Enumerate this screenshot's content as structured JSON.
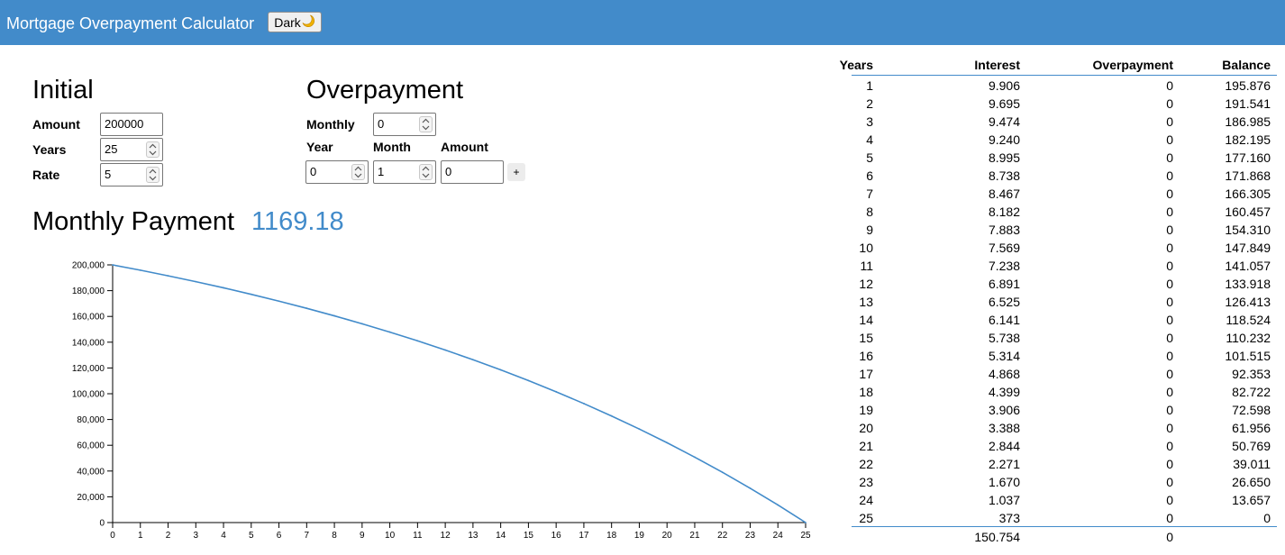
{
  "header": {
    "title": "Mortgage Overpayment Calculator",
    "dark_button_label": "Dark",
    "dark_button_icon": "moon-icon"
  },
  "initial": {
    "heading": "Initial",
    "amount_label": "Amount",
    "amount_value": "200000",
    "years_label": "Years",
    "years_value": "25",
    "rate_label": "Rate",
    "rate_value": "5"
  },
  "overpayment": {
    "heading": "Overpayment",
    "monthly_label": "Monthly",
    "monthly_value": "0",
    "year_label": "Year",
    "month_label": "Month",
    "amount_label": "Amount",
    "year_value": "0",
    "month_value": "1",
    "amount_value": "0",
    "add_button_label": "+"
  },
  "monthly_payment": {
    "label": "Monthly Payment",
    "value": "1169.18"
  },
  "colors": {
    "accent": "#428bca",
    "header_bg": "#428bca",
    "line": "#428bca"
  },
  "table": {
    "headers": [
      "Years",
      "Interest",
      "Overpayment",
      "Balance"
    ],
    "rows": [
      [
        "1",
        "9.906",
        "0",
        "195.876"
      ],
      [
        "2",
        "9.695",
        "0",
        "191.541"
      ],
      [
        "3",
        "9.474",
        "0",
        "186.985"
      ],
      [
        "4",
        "9.240",
        "0",
        "182.195"
      ],
      [
        "5",
        "8.995",
        "0",
        "177.160"
      ],
      [
        "6",
        "8.738",
        "0",
        "171.868"
      ],
      [
        "7",
        "8.467",
        "0",
        "166.305"
      ],
      [
        "8",
        "8.182",
        "0",
        "160.457"
      ],
      [
        "9",
        "7.883",
        "0",
        "154.310"
      ],
      [
        "10",
        "7.569",
        "0",
        "147.849"
      ],
      [
        "11",
        "7.238",
        "0",
        "141.057"
      ],
      [
        "12",
        "6.891",
        "0",
        "133.918"
      ],
      [
        "13",
        "6.525",
        "0",
        "126.413"
      ],
      [
        "14",
        "6.141",
        "0",
        "118.524"
      ],
      [
        "15",
        "5.738",
        "0",
        "110.232"
      ],
      [
        "16",
        "5.314",
        "0",
        "101.515"
      ],
      [
        "17",
        "4.868",
        "0",
        "92.353"
      ],
      [
        "18",
        "4.399",
        "0",
        "82.722"
      ],
      [
        "19",
        "3.906",
        "0",
        "72.598"
      ],
      [
        "20",
        "3.388",
        "0",
        "61.956"
      ],
      [
        "21",
        "2.844",
        "0",
        "50.769"
      ],
      [
        "22",
        "2.271",
        "0",
        "39.011"
      ],
      [
        "23",
        "1.670",
        "0",
        "26.650"
      ],
      [
        "24",
        "1.037",
        "0",
        "13.657"
      ],
      [
        "25",
        "373",
        "0",
        "0"
      ]
    ],
    "totals": [
      "",
      "150.754",
      "0",
      ""
    ]
  },
  "chart_data": {
    "type": "line",
    "x": [
      0,
      1,
      2,
      3,
      4,
      5,
      6,
      7,
      8,
      9,
      10,
      11,
      12,
      13,
      14,
      15,
      16,
      17,
      18,
      19,
      20,
      21,
      22,
      23,
      24,
      25
    ],
    "series": [
      {
        "values": [
          200000,
          195876,
          191541,
          186985,
          182195,
          177160,
          171868,
          166305,
          160457,
          154310,
          147849,
          141057,
          133918,
          126413,
          118524,
          110232,
          101515,
          92353,
          82722,
          72598,
          61956,
          50769,
          39011,
          26650,
          13657,
          0
        ]
      }
    ],
    "xlim": [
      0,
      25
    ],
    "ylim": [
      0,
      200000
    ],
    "x_ticks": [
      "0",
      "1",
      "2",
      "3",
      "4",
      "5",
      "6",
      "7",
      "8",
      "9",
      "10",
      "11",
      "12",
      "13",
      "14",
      "15",
      "16",
      "17",
      "18",
      "19",
      "20",
      "21",
      "22",
      "23",
      "24",
      "25"
    ],
    "y_ticks": [
      "0",
      "20,000",
      "40,000",
      "60,000",
      "80,000",
      "100,000",
      "120,000",
      "140,000",
      "160,000",
      "180,000",
      "200,000"
    ],
    "grid": false,
    "title": "",
    "xlabel": "",
    "ylabel": ""
  }
}
